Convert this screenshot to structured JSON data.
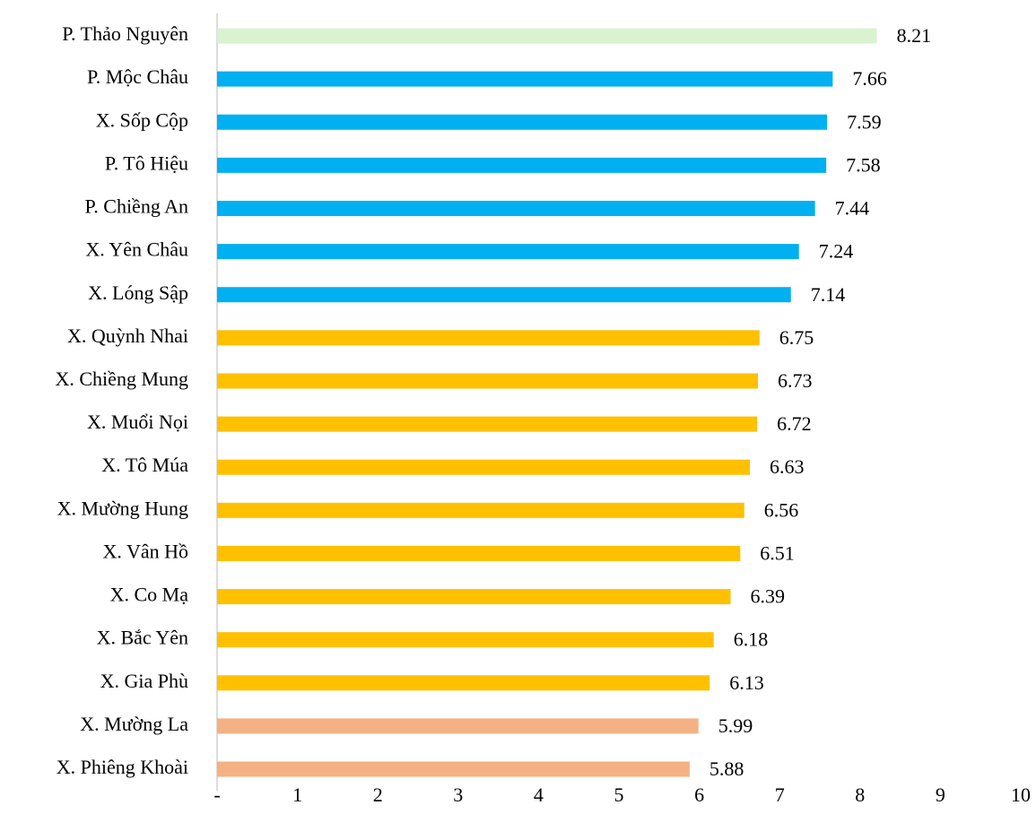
{
  "chart_data": {
    "type": "bar",
    "orientation": "horizontal",
    "categories": [
      "P. Thảo Nguyên",
      "P. Mộc Châu",
      "X. Sốp Cộp",
      "P. Tô Hiệu",
      "P. Chiềng An",
      "X. Yên Châu",
      "X. Lóng Sập",
      "X. Quỳnh Nhai",
      "X. Chiềng Mung",
      "X. Muổi Nọi",
      "X. Tô Múa",
      "X. Mường Hung",
      "X. Vân Hồ",
      "X. Co Mạ",
      "X. Bắc Yên",
      "X. Gia Phù",
      "X. Mường La",
      "X. Phiêng Khoài"
    ],
    "values": [
      8.21,
      7.66,
      7.59,
      7.58,
      7.44,
      7.24,
      7.14,
      6.75,
      6.73,
      6.72,
      6.63,
      6.56,
      6.51,
      6.39,
      6.18,
      6.13,
      5.99,
      5.88
    ],
    "colors": [
      "#d9f2d0",
      "#00b0f0",
      "#00b0f0",
      "#00b0f0",
      "#00b0f0",
      "#00b0f0",
      "#00b0f0",
      "#ffc000",
      "#ffc000",
      "#ffc000",
      "#ffc000",
      "#ffc000",
      "#ffc000",
      "#ffc000",
      "#ffc000",
      "#ffc000",
      "#f4b183",
      "#f4b183"
    ],
    "xlim": [
      0,
      10
    ],
    "xticks": [
      {
        "value": 0,
        "label": "-"
      },
      1,
      2,
      3,
      4,
      5,
      6,
      7,
      8,
      9,
      10
    ],
    "grid": false
  }
}
